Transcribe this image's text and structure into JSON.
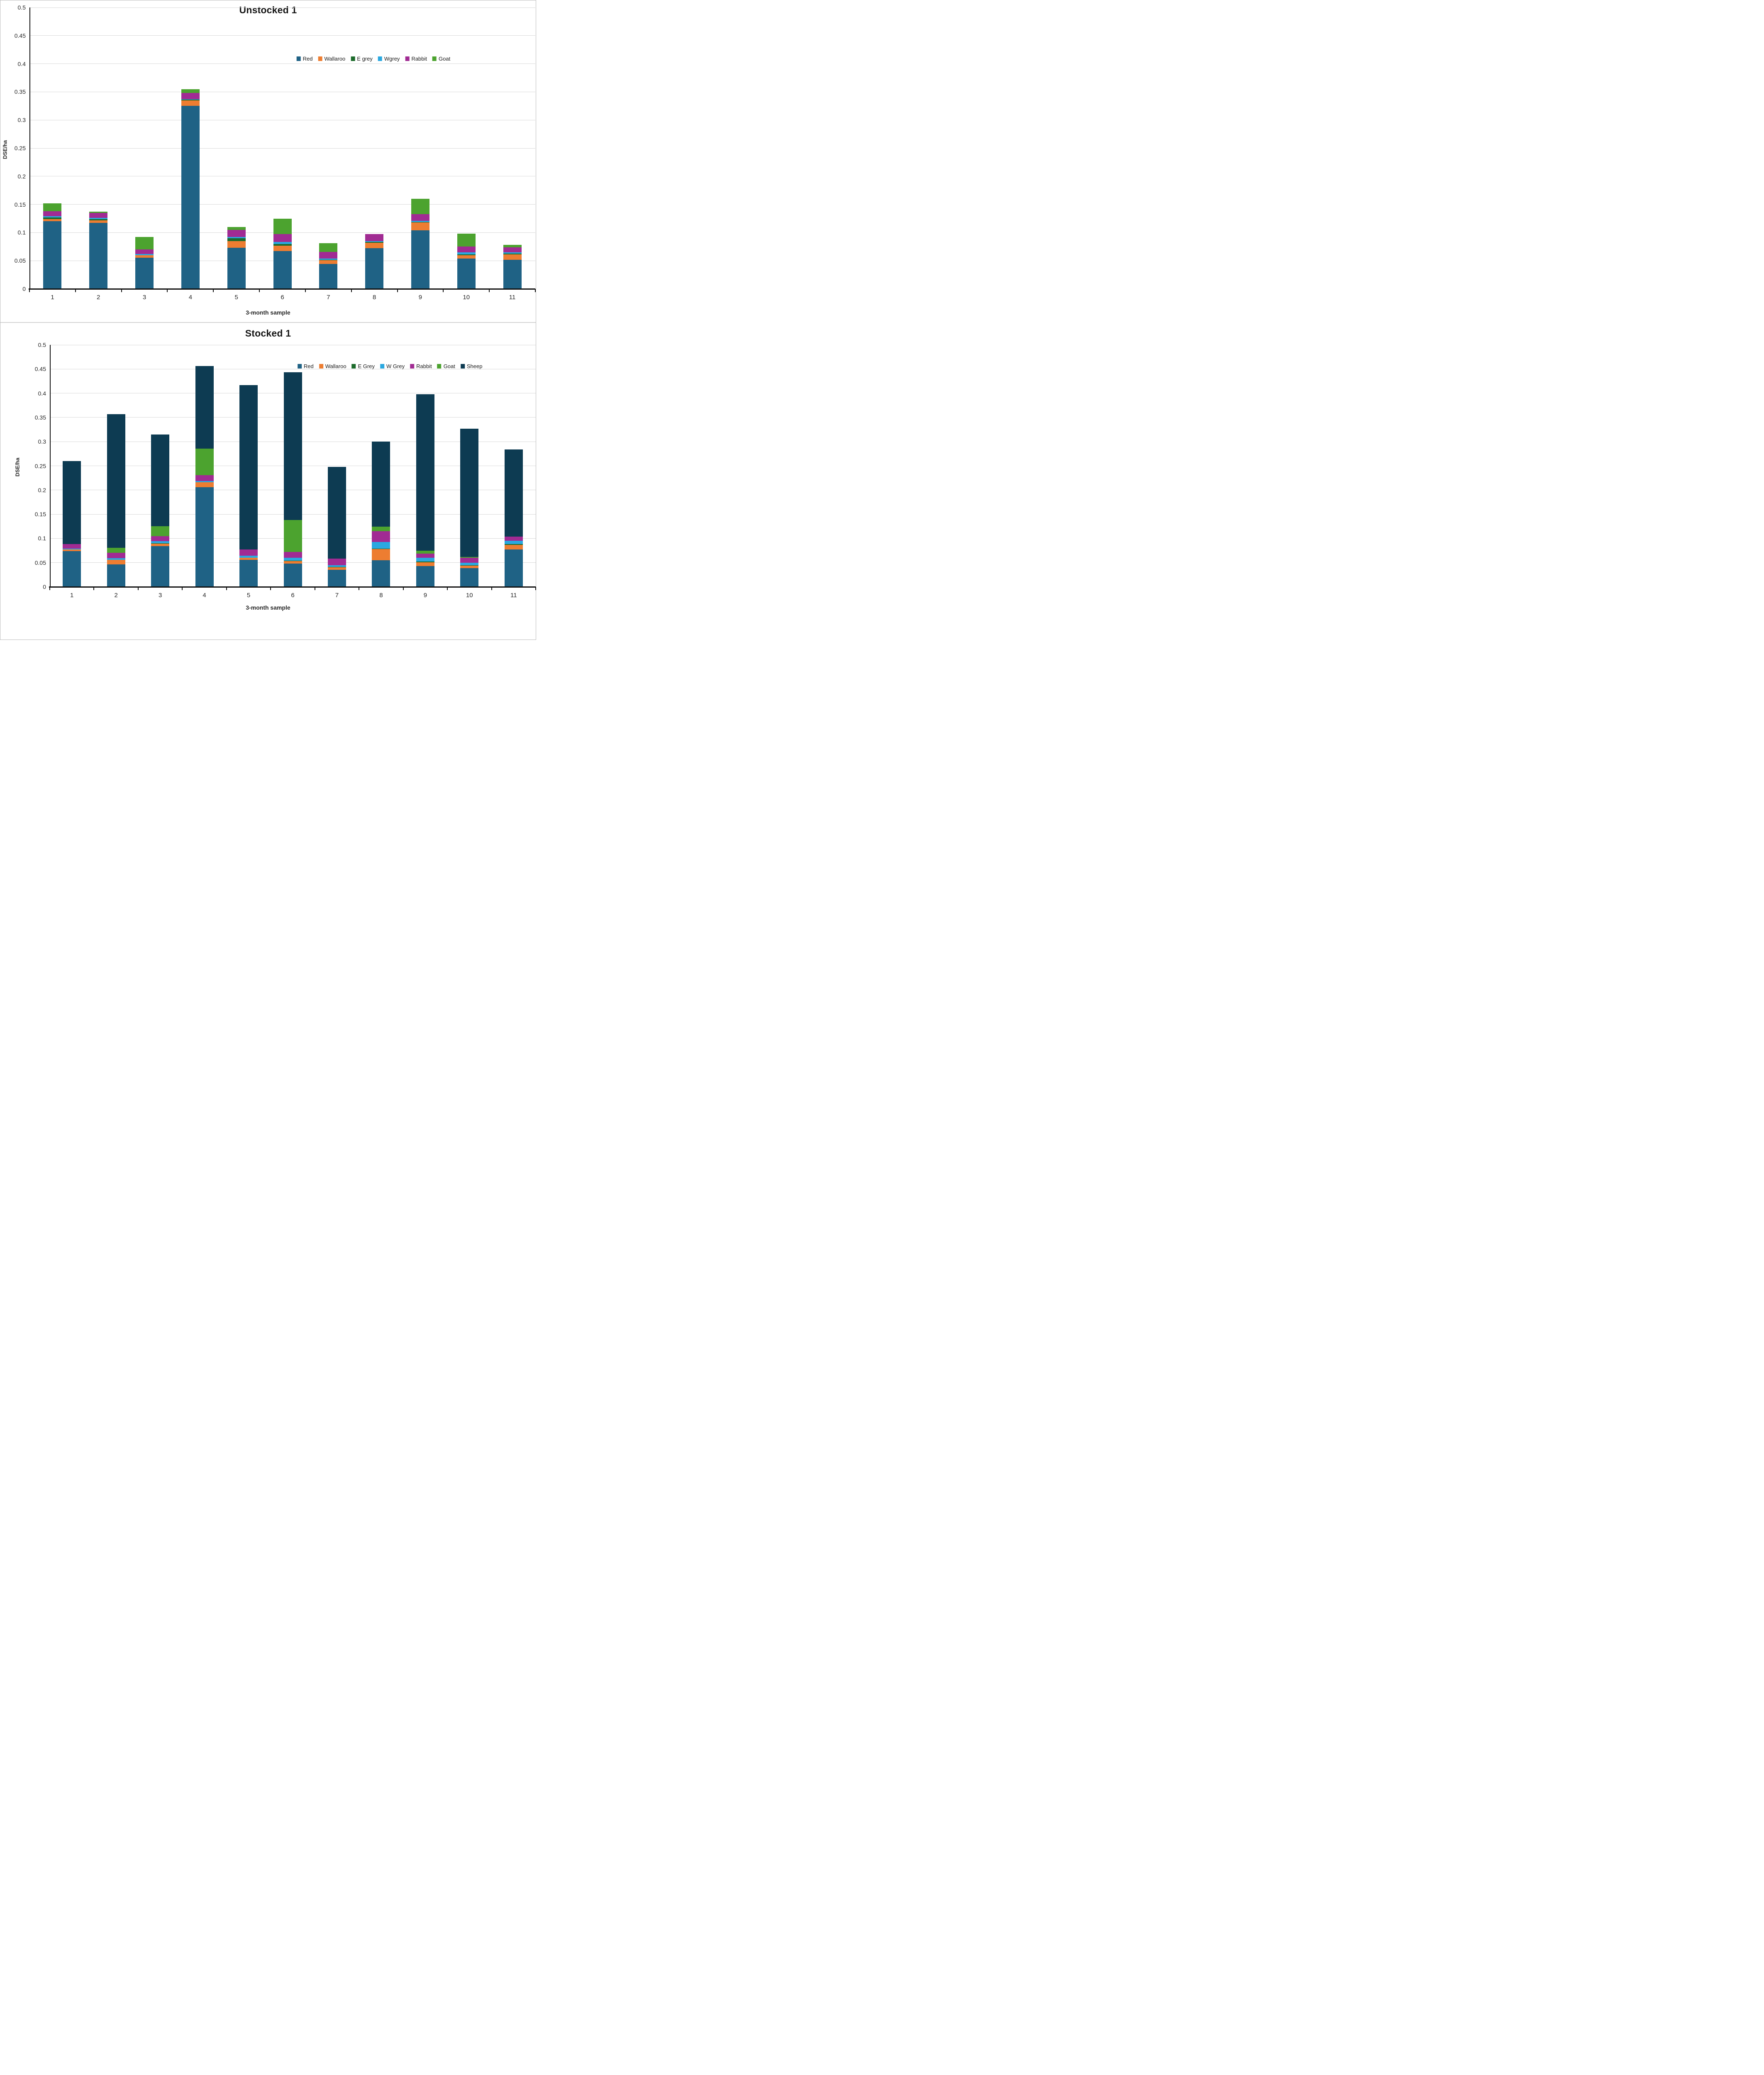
{
  "chart_data": [
    {
      "type": "bar",
      "stacked": true,
      "title": "Unstocked 1",
      "ylabel": "DSE/ha",
      "xlabel": "3-month sample",
      "ylim": [
        0,
        0.5
      ],
      "ytick_step": 0.05,
      "ytick_labels": [
        "0",
        "0.05",
        "0.1",
        "0.15",
        "0.2",
        "0.25",
        "0.3",
        "0.35",
        "0.4",
        "0.45",
        "0.5"
      ],
      "grid": "horizontal",
      "legend_position": "inside-top-right",
      "categories": [
        "1",
        "2",
        "3",
        "4",
        "5",
        "6",
        "7",
        "8",
        "9",
        "10",
        "11"
      ],
      "series": [
        {
          "name": "Red",
          "color": "#1f6285",
          "values": [
            0.12,
            0.117,
            0.055,
            0.325,
            0.073,
            0.067,
            0.044,
            0.072,
            0.104,
            0.054,
            0.052
          ]
        },
        {
          "name": "Wallaroo",
          "color": "#ed7d31",
          "values": [
            0.004,
            0.005,
            0.005,
            0.01,
            0.012,
            0.01,
            0.007,
            0.01,
            0.014,
            0.006,
            0.009
          ]
        },
        {
          "name": "E grey",
          "color": "#1c6b2b",
          "values": [
            0.003,
            0.002,
            0.0,
            0.001,
            0.005,
            0.003,
            0.001,
            0.001,
            0.001,
            0.001,
            0.002
          ]
        },
        {
          "name": "Wgrey",
          "color": "#2aa8e0",
          "values": [
            0.002,
            0.002,
            0.002,
            0.001,
            0.002,
            0.003,
            0.002,
            0.002,
            0.002,
            0.004,
            0.002
          ]
        },
        {
          "name": "Rabbit",
          "color": "#a12b93",
          "values": [
            0.009,
            0.009,
            0.008,
            0.011,
            0.013,
            0.014,
            0.012,
            0.012,
            0.012,
            0.01,
            0.009
          ]
        },
        {
          "name": "Goat",
          "color": "#4ca32f",
          "values": [
            0.014,
            0.002,
            0.022,
            0.007,
            0.005,
            0.028,
            0.015,
            0.0,
            0.027,
            0.023,
            0.004
          ]
        }
      ],
      "bar_totals": [
        0.152,
        0.137,
        0.092,
        0.355,
        0.11,
        0.125,
        0.081,
        0.097,
        0.16,
        0.098,
        0.078
      ]
    },
    {
      "type": "bar",
      "stacked": true,
      "title": "Stocked 1",
      "ylabel": "DSE/ha",
      "xlabel": "3-month sample",
      "ylim": [
        0,
        0.5
      ],
      "ytick_step": 0.05,
      "ytick_labels": [
        "0",
        "0.05",
        "0.1",
        "0.15",
        "0.2",
        "0.25",
        "0.3",
        "0.35",
        "0.4",
        "0.45",
        "0.5"
      ],
      "grid": "horizontal",
      "legend_position": "inside-top-right",
      "categories": [
        "1",
        "2",
        "3",
        "4",
        "5",
        "6",
        "7",
        "8",
        "9",
        "10",
        "11"
      ],
      "series": [
        {
          "name": "Red",
          "color": "#1f6285",
          "values": [
            0.074,
            0.046,
            0.084,
            0.206,
            0.056,
            0.048,
            0.035,
            0.055,
            0.043,
            0.039,
            0.077
          ]
        },
        {
          "name": "Wallaroo",
          "color": "#ed7d31",
          "values": [
            0.003,
            0.01,
            0.005,
            0.01,
            0.004,
            0.005,
            0.005,
            0.023,
            0.008,
            0.005,
            0.01
          ]
        },
        {
          "name": "E Grey",
          "color": "#1c6b2b",
          "values": [
            0.0,
            0.0,
            0.001,
            0.0,
            0.0,
            0.001,
            0.001,
            0.001,
            0.001,
            0.001,
            0.001
          ]
        },
        {
          "name": "W Grey",
          "color": "#2aa8e0",
          "values": [
            0.002,
            0.003,
            0.004,
            0.003,
            0.004,
            0.006,
            0.004,
            0.014,
            0.008,
            0.005,
            0.007
          ]
        },
        {
          "name": "Rabbit",
          "color": "#a12b93",
          "values": [
            0.009,
            0.011,
            0.011,
            0.012,
            0.013,
            0.012,
            0.013,
            0.022,
            0.009,
            0.01,
            0.009
          ]
        },
        {
          "name": "Goat",
          "color": "#4ca32f",
          "values": [
            0.0,
            0.011,
            0.02,
            0.055,
            0.0,
            0.066,
            0.0,
            0.009,
            0.006,
            0.002,
            0.0
          ]
        },
        {
          "name": "Sheep",
          "color": "#0d3b52",
          "values": [
            0.172,
            0.276,
            0.19,
            0.17,
            0.34,
            0.305,
            0.19,
            0.176,
            0.323,
            0.265,
            0.18
          ]
        }
      ],
      "bar_totals": [
        0.26,
        0.357,
        0.315,
        0.456,
        0.417,
        0.443,
        0.248,
        0.3,
        0.398,
        0.327,
        0.284
      ]
    }
  ]
}
